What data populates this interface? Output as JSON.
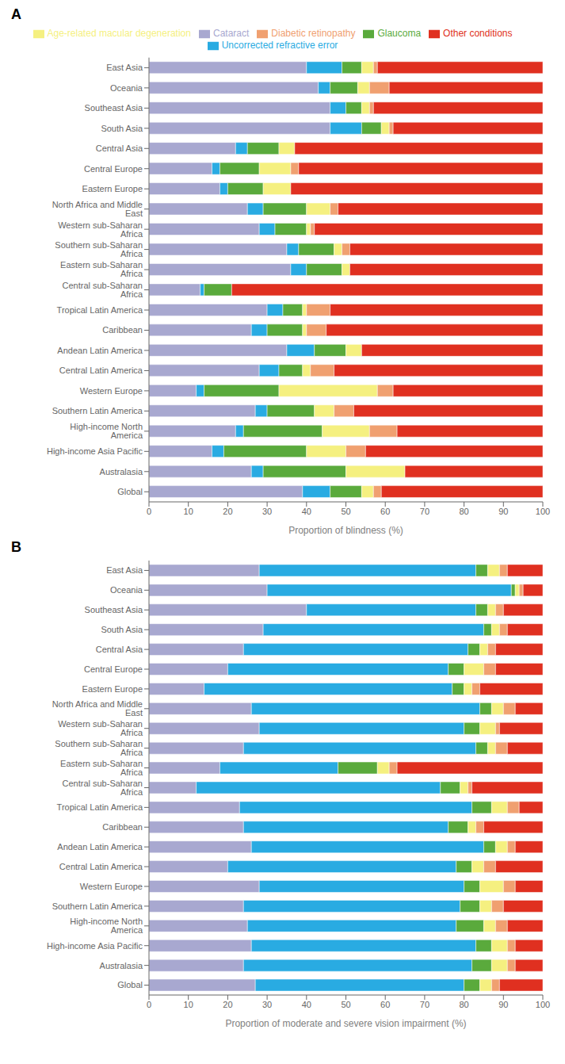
{
  "chart_data": [
    {
      "type": "bar",
      "title": "A",
      "x_label": "Proportion of blindness (%)",
      "orientation": "horizontal",
      "stacked": true,
      "legend": "top",
      "xlim": [
        0,
        100
      ],
      "xticks": [
        0,
        10,
        20,
        30,
        40,
        50,
        60,
        70,
        80,
        90,
        100
      ],
      "categories": [
        "East Asia",
        "Oceania",
        "Southeast Asia",
        "South Asia",
        "Central Asia",
        "Central Europe",
        "Eastern Europe",
        "North Africa and Middle East",
        "Western sub-Saharan Africa",
        "Southern sub-Saharan Africa",
        "Eastern sub-Saharan Africa",
        "Central sub-Saharan Africa",
        "Tropical Latin America",
        "Caribbean",
        "Andean Latin America",
        "Central Latin America",
        "Western Europe",
        "Southern Latin America",
        "High-income North America",
        "High-income Asia Pacific",
        "Australasia",
        "Global"
      ],
      "series": [
        {
          "name": "Cataract",
          "color": "#a8a8d0",
          "values": [
            40,
            43,
            46,
            46,
            22,
            16,
            18,
            25,
            28,
            35,
            36,
            13,
            30,
            26,
            35,
            28,
            12,
            27,
            22,
            16,
            26,
            39
          ]
        },
        {
          "name": "Uncorrected refractive error",
          "color": "#29abe2",
          "values": [
            9,
            3,
            4,
            8,
            3,
            2,
            2,
            4,
            4,
            3,
            4,
            1,
            4,
            4,
            7,
            5,
            2,
            3,
            2,
            3,
            3,
            7
          ]
        },
        {
          "name": "Glaucoma",
          "color": "#5aaa3c",
          "values": [
            5,
            7,
            4,
            5,
            8,
            10,
            9,
            11,
            8,
            9,
            9,
            7,
            5,
            9,
            8,
            6,
            19,
            12,
            20,
            21,
            21,
            8
          ]
        },
        {
          "name": "Age-related macular degeneration",
          "color": "#f5f080",
          "values": [
            3,
            3,
            2,
            2,
            4,
            8,
            7,
            6,
            1,
            2,
            2,
            0,
            1,
            1,
            4,
            2,
            25,
            5,
            12,
            10,
            15,
            3
          ]
        },
        {
          "name": "Diabetic retinopathy",
          "color": "#f0a070",
          "values": [
            1,
            5,
            1,
            1,
            0,
            2,
            0,
            2,
            1,
            2,
            0,
            0,
            6,
            5,
            0,
            6,
            4,
            5,
            7,
            5,
            0,
            2
          ]
        },
        {
          "name": "Other conditions",
          "color": "#e03020",
          "values": [
            42,
            39,
            43,
            38,
            63,
            62,
            64,
            52,
            58,
            49,
            49,
            79,
            54,
            55,
            46,
            53,
            38,
            48,
            37,
            45,
            35,
            41
          ]
        }
      ]
    },
    {
      "type": "bar",
      "title": "B",
      "x_label": "Proportion of moderate and severe vision impairment (%)",
      "orientation": "horizontal",
      "stacked": true,
      "xlim": [
        0,
        100
      ],
      "xticks": [
        0,
        10,
        20,
        30,
        40,
        50,
        60,
        70,
        80,
        90,
        100
      ],
      "categories": [
        "East Asia",
        "Oceania",
        "Southeast Asia",
        "South Asia",
        "Central Asia",
        "Central Europe",
        "Eastern Europe",
        "North Africa and Middle East",
        "Western sub-Saharan Africa",
        "Southern sub-Saharan Africa",
        "Eastern sub-Saharan Africa",
        "Central sub-Saharan Africa",
        "Tropical Latin America",
        "Caribbean",
        "Andean Latin America",
        "Central Latin America",
        "Western Europe",
        "Southern Latin America",
        "High-income North America",
        "High-income Asia Pacific",
        "Australasia",
        "Global"
      ],
      "series": [
        {
          "name": "Cataract",
          "color": "#a8a8d0",
          "values": [
            28,
            30,
            40,
            29,
            24,
            20,
            14,
            26,
            28,
            24,
            18,
            12,
            23,
            24,
            26,
            20,
            28,
            24,
            25,
            26,
            24,
            27
          ]
        },
        {
          "name": "Uncorrected refractive error",
          "color": "#29abe2",
          "values": [
            55,
            62,
            43,
            56,
            57,
            56,
            63,
            58,
            52,
            59,
            30,
            62,
            59,
            52,
            59,
            58,
            52,
            55,
            53,
            57,
            58,
            53
          ]
        },
        {
          "name": "Glaucoma",
          "color": "#5aaa3c",
          "values": [
            3,
            1,
            3,
            2,
            3,
            4,
            3,
            3,
            4,
            3,
            10,
            5,
            5,
            5,
            3,
            4,
            4,
            5,
            7,
            4,
            5,
            4
          ]
        },
        {
          "name": "Age-related macular degeneration",
          "color": "#f5f080",
          "values": [
            3,
            1,
            2,
            2,
            2,
            5,
            2,
            3,
            4,
            2,
            3,
            2,
            4,
            2,
            3,
            3,
            6,
            3,
            3,
            4,
            4,
            3
          ]
        },
        {
          "name": "Diabetic retinopathy",
          "color": "#f0a070",
          "values": [
            2,
            1,
            2,
            2,
            2,
            3,
            2,
            3,
            1,
            3,
            2,
            1,
            3,
            2,
            2,
            3,
            3,
            3,
            3,
            2,
            2,
            2
          ]
        },
        {
          "name": "Other conditions",
          "color": "#e03020",
          "values": [
            9,
            5,
            10,
            9,
            12,
            12,
            16,
            7,
            11,
            9,
            37,
            18,
            6,
            15,
            7,
            12,
            7,
            10,
            9,
            7,
            7,
            11
          ]
        }
      ]
    }
  ]
}
